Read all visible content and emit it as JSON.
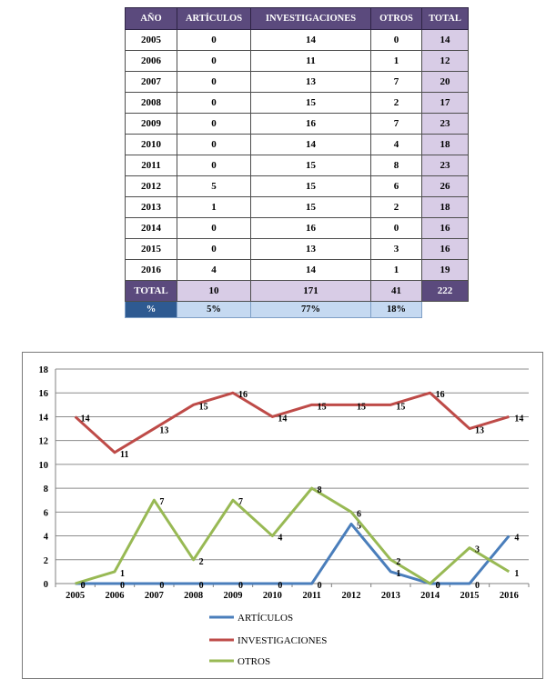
{
  "table": {
    "headers": [
      "AÑO",
      "ARTÍCULOS",
      "INVESTIGACIONES",
      "OTROS",
      "TOTAL"
    ],
    "rows": [
      [
        "2005",
        "0",
        "14",
        "0",
        "14"
      ],
      [
        "2006",
        "0",
        "11",
        "1",
        "12"
      ],
      [
        "2007",
        "0",
        "13",
        "7",
        "20"
      ],
      [
        "2008",
        "0",
        "15",
        "2",
        "17"
      ],
      [
        "2009",
        "0",
        "16",
        "7",
        "23"
      ],
      [
        "2010",
        "0",
        "14",
        "4",
        "18"
      ],
      [
        "2011",
        "0",
        "15",
        "8",
        "23"
      ],
      [
        "2012",
        "5",
        "15",
        "6",
        "26"
      ],
      [
        "2013",
        "1",
        "15",
        "2",
        "18"
      ],
      [
        "2014",
        "0",
        "16",
        "0",
        "16"
      ],
      [
        "2015",
        "0",
        "13",
        "3",
        "16"
      ],
      [
        "2016",
        "4",
        "14",
        "1",
        "19"
      ]
    ],
    "total_row": [
      "TOTAL",
      "10",
      "171",
      "41",
      "222"
    ],
    "pct_row": [
      "%",
      "5%",
      "77%",
      "18%",
      ""
    ]
  },
  "chart_data": {
    "type": "line",
    "x": [
      "2005",
      "2006",
      "2007",
      "2008",
      "2009",
      "2010",
      "2011",
      "2012",
      "2013",
      "2014",
      "2015",
      "2016"
    ],
    "ylim": [
      0,
      18
    ],
    "yticks": [
      0,
      2,
      4,
      6,
      8,
      10,
      12,
      14,
      16,
      18
    ],
    "grid": true,
    "legend_position": "bottom",
    "series": [
      {
        "name": "ARTÍCULOS",
        "color": "#4a7ebb",
        "values": [
          0,
          0,
          0,
          0,
          0,
          0,
          0,
          5,
          1,
          0,
          0,
          4
        ]
      },
      {
        "name": "INVESTIGACIONES",
        "color": "#be4b48",
        "values": [
          14,
          11,
          13,
          15,
          16,
          14,
          15,
          15,
          15,
          16,
          13,
          14
        ]
      },
      {
        "name": "OTROS",
        "color": "#98b954",
        "values": [
          0,
          1,
          7,
          2,
          7,
          4,
          8,
          6,
          2,
          0,
          3,
          1
        ]
      }
    ]
  }
}
